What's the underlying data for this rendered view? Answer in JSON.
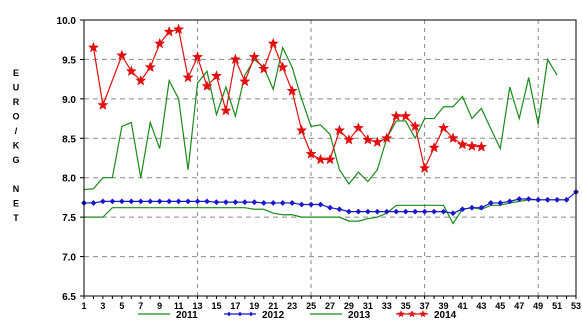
{
  "chart_data": {
    "type": "line",
    "ylabel": "E U R O / K G   N E T",
    "ylabel_lines": [
      "E",
      "U",
      "R",
      "O",
      "/",
      "K",
      "G",
      "",
      "N",
      "E",
      "T"
    ],
    "ylim": [
      6.5,
      10.0
    ],
    "y_ticks": [
      "6.5",
      "7.0",
      "7.5",
      "8.0",
      "8.5",
      "9.0",
      "9.5",
      "10.0"
    ],
    "y_tick_values": [
      6.5,
      7.0,
      7.5,
      8.0,
      8.5,
      9.0,
      9.5,
      10.0
    ],
    "x_range": [
      1,
      53
    ],
    "x_ticks": [
      "1",
      "3",
      "5",
      "7",
      "9",
      "11",
      "13",
      "15",
      "17",
      "19",
      "21",
      "23",
      "25",
      "27",
      "29",
      "31",
      "33",
      "35",
      "37",
      "39",
      "41",
      "43",
      "45",
      "47",
      "49",
      "51",
      "53"
    ],
    "grid": "dashed",
    "legend_position": "bottom",
    "series": [
      {
        "name": "2011",
        "color": "#1a8a1a",
        "marker": "none",
        "x": [
          1,
          2,
          3,
          4,
          5,
          6,
          7,
          8,
          9,
          10,
          11,
          12,
          13,
          14,
          15,
          16,
          17,
          18,
          19,
          20,
          21,
          22,
          23,
          24,
          25,
          26,
          27,
          28,
          29,
          30,
          31,
          32,
          33,
          34,
          35,
          36,
          37,
          38,
          39,
          40,
          41,
          42,
          43,
          44,
          45,
          46,
          47,
          48,
          49,
          50,
          51,
          52
        ],
        "values": [
          7.5,
          7.5,
          7.5,
          7.62,
          7.62,
          7.62,
          7.62,
          7.62,
          7.62,
          7.62,
          7.62,
          7.62,
          7.62,
          7.62,
          7.62,
          7.62,
          7.62,
          7.62,
          7.6,
          7.6,
          7.55,
          7.53,
          7.53,
          7.5,
          7.5,
          7.5,
          7.5,
          7.5,
          7.45,
          7.45,
          7.48,
          7.5,
          7.55,
          7.65,
          7.65,
          7.65,
          7.65,
          7.65,
          7.65,
          7.42,
          7.6,
          7.62,
          7.6,
          7.65,
          7.65,
          7.68,
          7.7,
          7.72,
          7.72,
          7.72,
          7.72,
          7.72
        ]
      },
      {
        "name": "2012",
        "color": "#1a1acc",
        "marker": "diamond",
        "x": [
          1,
          2,
          3,
          4,
          5,
          6,
          7,
          8,
          9,
          10,
          11,
          12,
          13,
          14,
          15,
          16,
          17,
          18,
          19,
          20,
          21,
          22,
          23,
          24,
          25,
          26,
          27,
          28,
          29,
          30,
          31,
          32,
          33,
          34,
          35,
          36,
          37,
          38,
          39,
          40,
          41,
          42,
          43,
          44,
          45,
          46,
          47,
          48,
          49,
          50,
          51,
          52,
          53
        ],
        "values": [
          7.68,
          7.68,
          7.7,
          7.7,
          7.7,
          7.7,
          7.7,
          7.7,
          7.7,
          7.7,
          7.7,
          7.7,
          7.7,
          7.7,
          7.69,
          7.69,
          7.69,
          7.69,
          7.69,
          7.68,
          7.68,
          7.68,
          7.68,
          7.66,
          7.66,
          7.66,
          7.62,
          7.6,
          7.57,
          7.57,
          7.57,
          7.57,
          7.57,
          7.57,
          7.57,
          7.57,
          7.57,
          7.57,
          7.57,
          7.55,
          7.6,
          7.62,
          7.62,
          7.68,
          7.68,
          7.7,
          7.73,
          7.73,
          7.72,
          7.72,
          7.72,
          7.72,
          7.82
        ]
      },
      {
        "name": "2013",
        "color": "#1a8a1a",
        "marker": "none",
        "x": [
          1,
          2,
          3,
          4,
          5,
          6,
          7,
          8,
          9,
          10,
          11,
          12,
          13,
          14,
          15,
          16,
          17,
          18,
          19,
          20,
          21,
          22,
          23,
          24,
          25,
          26,
          27,
          28,
          29,
          30,
          31,
          32,
          33,
          34,
          35,
          36,
          37,
          38,
          39,
          40,
          41,
          42,
          43,
          44,
          45,
          46,
          47,
          48,
          49,
          50,
          51
        ],
        "values": [
          7.85,
          7.86,
          8.0,
          8.0,
          8.65,
          8.7,
          8.0,
          8.7,
          8.37,
          9.23,
          9.0,
          8.1,
          9.2,
          9.35,
          8.8,
          9.15,
          8.78,
          9.3,
          9.5,
          9.4,
          9.12,
          9.65,
          9.4,
          9.0,
          8.65,
          8.67,
          8.55,
          8.1,
          7.92,
          8.07,
          7.95,
          8.1,
          8.5,
          8.72,
          8.72,
          8.5,
          8.75,
          8.75,
          8.9,
          8.9,
          9.03,
          8.75,
          8.88,
          8.62,
          8.37,
          9.15,
          8.75,
          9.27,
          8.68,
          9.5,
          9.3
        ]
      },
      {
        "name": "2014",
        "color": "#e01010",
        "marker": "star",
        "x": [
          2,
          3,
          5,
          6,
          7,
          8,
          9,
          10,
          11,
          12,
          13,
          14,
          15,
          16,
          17,
          18,
          19,
          20,
          21,
          22,
          23,
          24,
          25,
          26,
          27,
          28,
          29,
          30,
          31,
          32,
          33,
          34,
          35,
          36,
          37,
          38,
          39,
          40,
          41,
          42,
          43
        ],
        "values": [
          9.65,
          8.92,
          9.55,
          9.35,
          9.23,
          9.4,
          9.7,
          9.85,
          9.88,
          9.27,
          9.53,
          9.16,
          9.29,
          8.85,
          9.5,
          9.22,
          9.53,
          9.38,
          9.7,
          9.4,
          9.1,
          8.6,
          8.3,
          8.23,
          8.23,
          8.6,
          8.48,
          8.63,
          8.48,
          8.45,
          8.5,
          8.78,
          8.78,
          8.65,
          8.12,
          8.38,
          8.63,
          8.5,
          8.42,
          8.4,
          8.39
        ]
      }
    ]
  }
}
